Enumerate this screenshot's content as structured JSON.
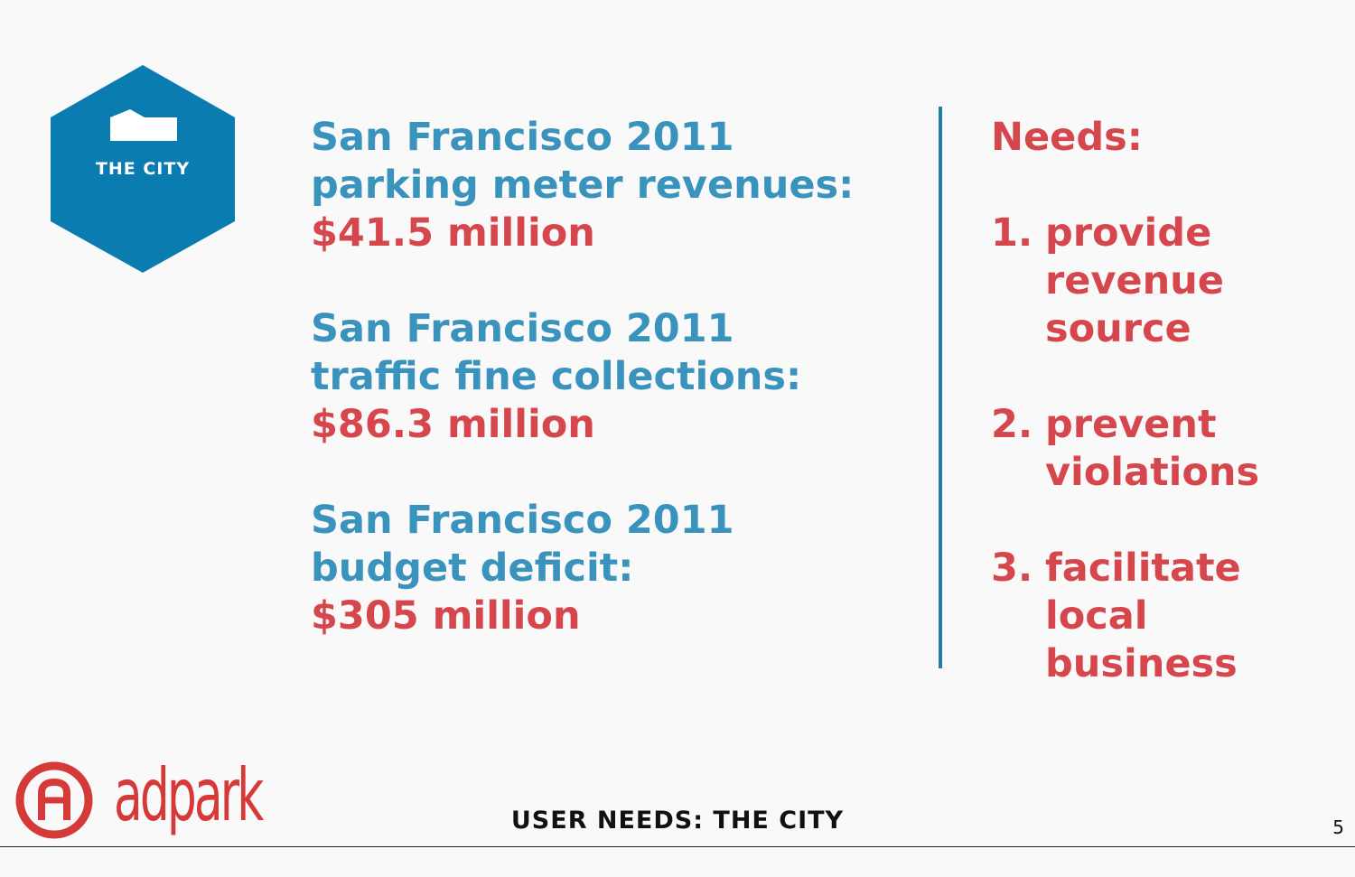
{
  "badge": {
    "label": "THE CITY",
    "color": "#0a7cb0"
  },
  "stats": [
    {
      "line1": "San Francisco 2011",
      "line2": "parking meter revenues:",
      "value": "$41.5 million"
    },
    {
      "line1": "San Francisco 2011",
      "line2": "traffic fine collections:",
      "value": "$86.3 million"
    },
    {
      "line1": "San Francisco 2011",
      "line2": "budget deficit:",
      "value": "$305 million"
    }
  ],
  "needs": {
    "title": "Needs:",
    "items": [
      {
        "number": "1.",
        "lines": [
          "provide",
          "revenue",
          "source"
        ]
      },
      {
        "number": "2.",
        "lines": [
          "prevent",
          "violations"
        ]
      },
      {
        "number": "3.",
        "lines": [
          "facilitate",
          "local",
          "business"
        ]
      }
    ]
  },
  "footer": {
    "logo_text": "adpark",
    "title": "USER NEEDS: THE CITY",
    "page_number": "5"
  },
  "colors": {
    "blue_text": "#3a93bd",
    "red_text": "#d6474d",
    "divider": "#1e7fa8",
    "logo_red": "#d63a38"
  }
}
